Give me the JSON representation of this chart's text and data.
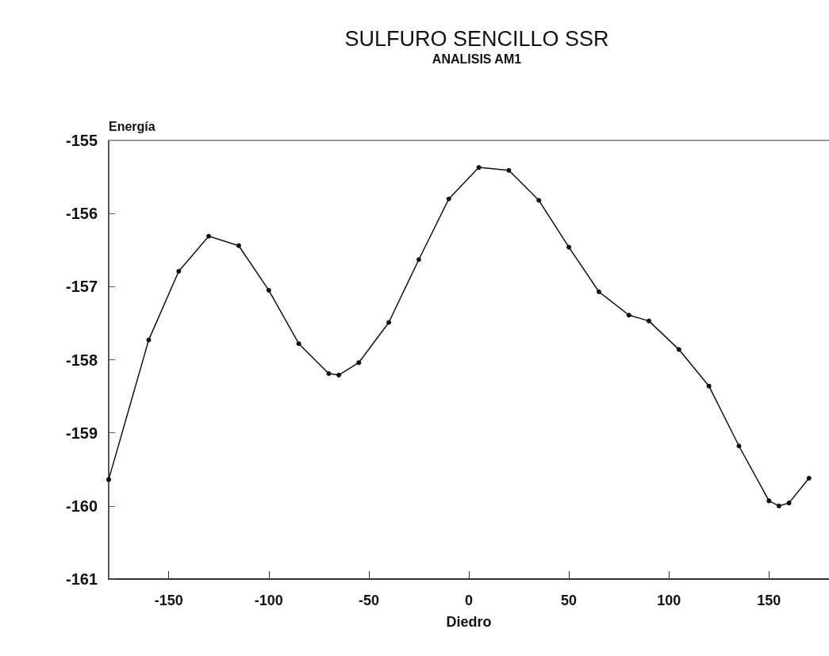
{
  "chart_data": {
    "type": "line",
    "title": "SULFURO SENCILLO SSR",
    "subtitle": "ANALISIS AM1",
    "xlabel": "Diedro",
    "ylabel": "Energía",
    "x": [
      -180,
      -160,
      -145,
      -130,
      -115,
      -100,
      -85,
      -70,
      -65,
      -55,
      -40,
      -25,
      -10,
      5,
      20,
      35,
      50,
      65,
      80,
      90,
      105,
      120,
      135,
      150,
      155,
      160,
      170
    ],
    "series": [
      {
        "color": "#111111",
        "values": [
          -159.64,
          -157.73,
          -156.79,
          -156.31,
          -156.44,
          -157.05,
          -157.78,
          -158.19,
          -158.21,
          -158.04,
          -157.49,
          -156.63,
          -155.8,
          -155.37,
          -155.41,
          -155.82,
          -156.46,
          -157.07,
          -157.39,
          -157.47,
          -157.86,
          -158.36,
          -159.18,
          -159.93,
          -160,
          -159.96,
          -159.62
        ]
      }
    ],
    "xlim": [
      -180,
      180
    ],
    "xticks": [
      -150,
      -100,
      -50,
      0,
      50,
      100,
      150
    ],
    "ylim": [
      -161,
      -155
    ],
    "yticks": [
      -161,
      -160,
      -159,
      -158,
      -157,
      -156,
      -155
    ],
    "grid": false,
    "marker": "circle",
    "line_style": "solid"
  }
}
